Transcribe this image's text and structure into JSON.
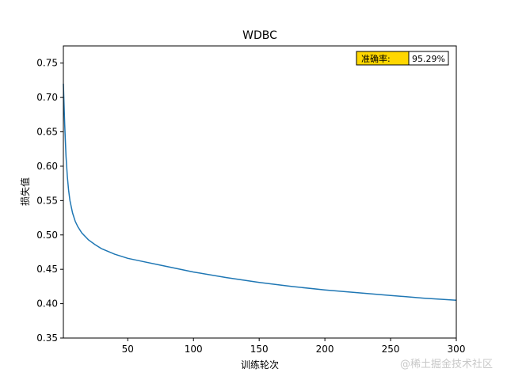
{
  "chart_data": {
    "type": "line",
    "title": "WDBC",
    "xlabel": "训练轮次",
    "ylabel": "损失值",
    "xlim": [
      1,
      300
    ],
    "ylim": [
      0.35,
      0.775
    ],
    "x_ticks": [
      50,
      100,
      150,
      200,
      250,
      300
    ],
    "x_tick_labels": [
      "50",
      "100",
      "150",
      "200",
      "250",
      "300"
    ],
    "y_ticks": [
      0.35,
      0.4,
      0.45,
      0.5,
      0.55,
      0.6,
      0.65,
      0.7,
      0.75
    ],
    "y_tick_labels": [
      "0.35",
      "0.40",
      "0.45",
      "0.50",
      "0.55",
      "0.60",
      "0.65",
      "0.70",
      "0.75"
    ],
    "grid": false,
    "series": [
      {
        "name": "loss",
        "color": "#1f77b4",
        "x": [
          1,
          2,
          3,
          4,
          5,
          6,
          8,
          10,
          12,
          15,
          20,
          25,
          30,
          40,
          50,
          60,
          75,
          100,
          125,
          150,
          175,
          200,
          225,
          250,
          275,
          300
        ],
        "values": [
          0.72,
          0.66,
          0.615,
          0.585,
          0.565,
          0.55,
          0.532,
          0.52,
          0.512,
          0.503,
          0.493,
          0.486,
          0.48,
          0.472,
          0.466,
          0.462,
          0.456,
          0.446,
          0.438,
          0.431,
          0.425,
          0.42,
          0.416,
          0.412,
          0.408,
          0.405
        ]
      }
    ],
    "annotation": {
      "label": "准确率:",
      "value": "95.29%",
      "label_bg": "#ffd700",
      "value_bg": "#ffffff",
      "position": "top-right"
    }
  },
  "watermark": "@稀土掘金技术社区"
}
